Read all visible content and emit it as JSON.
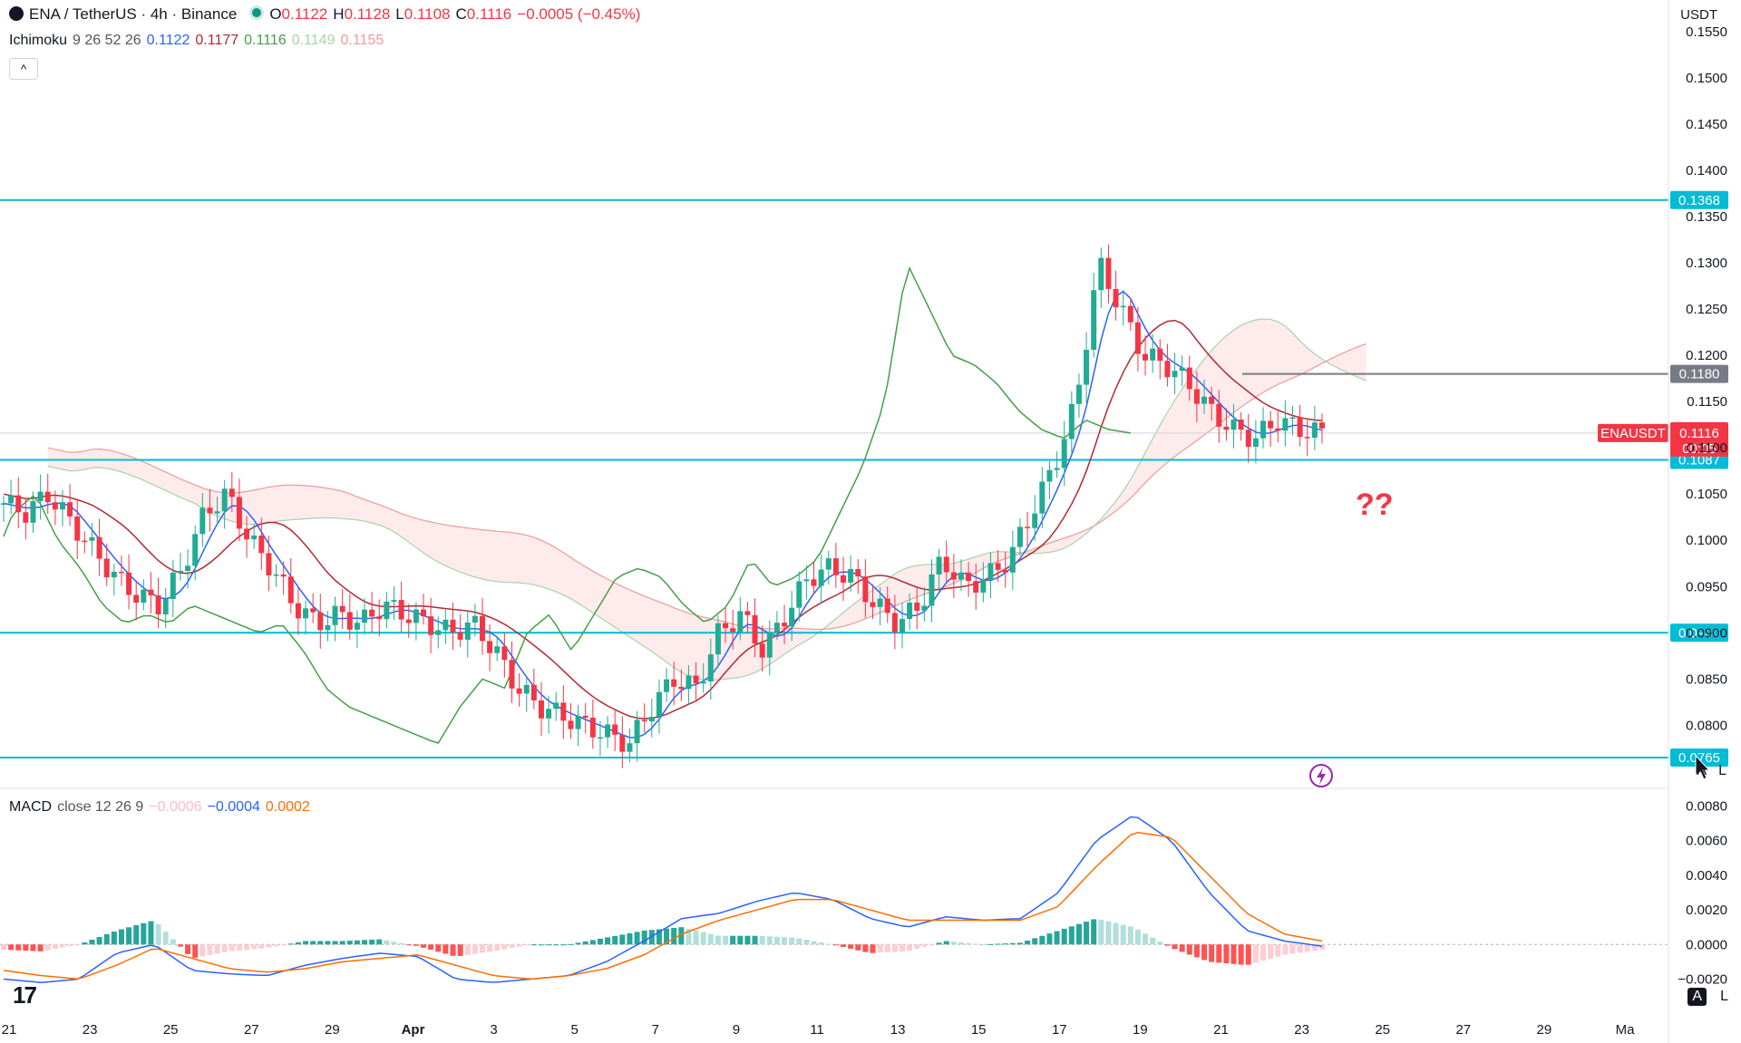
{
  "header": {
    "symbol": "ENA / TetherUS · 4h · Binance",
    "o_label": "O",
    "o_val": "0.1122",
    "h_label": "H",
    "h_val": "0.1128",
    "l_label": "L",
    "l_val": "0.1108",
    "c_label": "C",
    "c_val": "0.1116",
    "change": "−0.0005 (−0.45%)",
    "currency": "USDT"
  },
  "ichimoku_legend": {
    "name": "Ichimoku",
    "params": "9 26 52 26",
    "v1": "0.1122",
    "v2": "0.1177",
    "v3": "0.1116",
    "v4": "0.1149",
    "v5": "0.1155"
  },
  "macd_legend": {
    "name": "MACD",
    "params": "close 12 26 9",
    "v1": "−0.0006",
    "v2": "−0.0004",
    "v3": "0.0002"
  },
  "overlay": {
    "question": "??",
    "collapse": "^",
    "a_label": "A",
    "l_label": "L"
  },
  "colors": {
    "bull": "#22ab94",
    "bear": "#f23645",
    "level": "#00bcd4",
    "kijun": "#b22833",
    "tenkan": "#2962ff",
    "chikou": "#43a047",
    "macd": "#2962ff",
    "signal": "#ff6d00"
  },
  "chart_data": [
    {
      "type": "candlestick",
      "title": "ENA / TetherUS · 4h · Binance",
      "ylim": [
        0.0765,
        0.1555
      ],
      "y_ticks": [
        "0.1550",
        "0.1500",
        "0.1450",
        "0.1400",
        "0.1350",
        "0.1300",
        "0.1250",
        "0.1200",
        "0.1150",
        "0.1100",
        "0.1050",
        "0.1000",
        "0.0950",
        "0.0900",
        "0.0850",
        "0.0800"
      ],
      "x_ticks": [
        "21",
        "23",
        "25",
        "27",
        "29",
        "Apr",
        "3",
        "5",
        "7",
        "9",
        "11",
        "13",
        "15",
        "17",
        "19",
        "21",
        "23",
        "25",
        "27",
        "29",
        "Ma"
      ],
      "levels": [
        {
          "value": 0.1368,
          "label": "0.1368"
        },
        {
          "value": 0.1087,
          "label": "0.1087"
        },
        {
          "value": 0.09,
          "label": "0.0900"
        },
        {
          "value": 0.0765,
          "label": "0.0765"
        }
      ],
      "resistance": {
        "value": 0.118,
        "label": "0.1180"
      },
      "last_price": {
        "symbol": "ENAUSDT",
        "value": 0.1116,
        "label": "0.1116",
        "countdown": "00:05"
      },
      "close_path": [
        0.104,
        0.103,
        0.105,
        0.102,
        0.099,
        0.096,
        0.094,
        0.093,
        0.097,
        0.103,
        0.105,
        0.1,
        0.097,
        0.093,
        0.091,
        0.092,
        0.091,
        0.093,
        0.092,
        0.091,
        0.09,
        0.091,
        0.088,
        0.084,
        0.082,
        0.081,
        0.08,
        0.079,
        0.078,
        0.082,
        0.085,
        0.084,
        0.09,
        0.092,
        0.088,
        0.092,
        0.096,
        0.097,
        0.096,
        0.093,
        0.091,
        0.093,
        0.098,
        0.095,
        0.096,
        0.098,
        0.103,
        0.108,
        0.115,
        0.13,
        0.125,
        0.12,
        0.119,
        0.117,
        0.114,
        0.112,
        0.111,
        0.113,
        0.112,
        0.1116
      ]
    },
    {
      "type": "line",
      "title": "MACD close 12 26 9",
      "ylim": [
        -0.0025,
        0.0085
      ],
      "y_ticks": [
        "0.0080",
        "0.0060",
        "0.0040",
        "0.0020",
        "0.0000",
        "−0.0020"
      ],
      "macd_path": [
        -0.002,
        -0.0022,
        -0.002,
        -0.0005,
        0.0,
        -0.0015,
        -0.0017,
        -0.0018,
        -0.0012,
        -0.0008,
        -0.0005,
        -0.0007,
        -0.002,
        -0.0022,
        -0.002,
        -0.0018,
        -0.001,
        0.0002,
        0.0015,
        0.0018,
        0.0025,
        0.003,
        0.0026,
        0.0015,
        0.001,
        0.0016,
        0.0014,
        0.0015,
        0.003,
        0.006,
        0.0075,
        0.006,
        0.003,
        0.0008,
        0.0002,
        -0.0001
      ],
      "signal_path": [
        -0.0015,
        -0.0018,
        -0.002,
        -0.0012,
        -0.0002,
        -0.0008,
        -0.0014,
        -0.0016,
        -0.0014,
        -0.001,
        -0.0008,
        -0.0006,
        -0.0012,
        -0.0018,
        -0.002,
        -0.0018,
        -0.0014,
        -0.0006,
        0.0006,
        0.0014,
        0.002,
        0.0026,
        0.0026,
        0.002,
        0.0014,
        0.0014,
        0.0014,
        0.0014,
        0.0022,
        0.0045,
        0.0065,
        0.0062,
        0.004,
        0.0018,
        0.0006,
        0.0002
      ],
      "hist_path": [
        -0.0003,
        -0.0004,
        0.0,
        0.0008,
        0.0014,
        -0.0008,
        -0.0004,
        -0.0002,
        0.0002,
        0.0002,
        0.0003,
        -0.0001,
        -0.0007,
        -0.0004,
        0.0,
        0.0,
        0.0004,
        0.0008,
        0.001,
        0.0005,
        0.0005,
        0.0004,
        0.0,
        -0.0005,
        -0.0004,
        0.0002,
        0.0,
        0.0001,
        0.0008,
        0.0015,
        0.001,
        -0.0002,
        -0.001,
        -0.0012,
        -0.0006,
        -0.0003
      ]
    }
  ]
}
